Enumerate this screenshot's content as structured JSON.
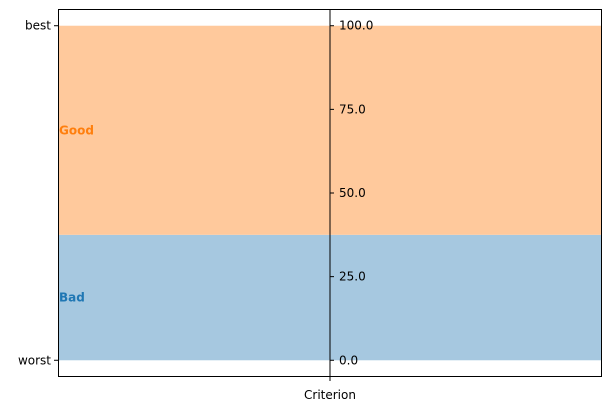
{
  "chart_data": {
    "type": "area",
    "title": "",
    "xlabel": "Criterion",
    "ylabel": "",
    "ylim": [
      -5,
      105
    ],
    "left_axis_ticks": [
      {
        "value": 100,
        "label": "best"
      },
      {
        "value": 0,
        "label": "worst"
      }
    ],
    "center_axis_ticks": [
      {
        "value": 100,
        "label": "100.0"
      },
      {
        "value": 75,
        "label": "75.0"
      },
      {
        "value": 50,
        "label": "50.0"
      },
      {
        "value": 25,
        "label": "25.0"
      },
      {
        "value": 0,
        "label": "0.0"
      }
    ],
    "bands": [
      {
        "name": "Bad",
        "from": 0,
        "to": 37.5,
        "fill": "#a6c8e0",
        "label_color": "#1f77b4"
      },
      {
        "name": "Good",
        "from": 37.5,
        "to": 100,
        "fill": "#ffc99c",
        "label_color": "#ff7f0e"
      }
    ],
    "grid": false,
    "legend": "none"
  }
}
